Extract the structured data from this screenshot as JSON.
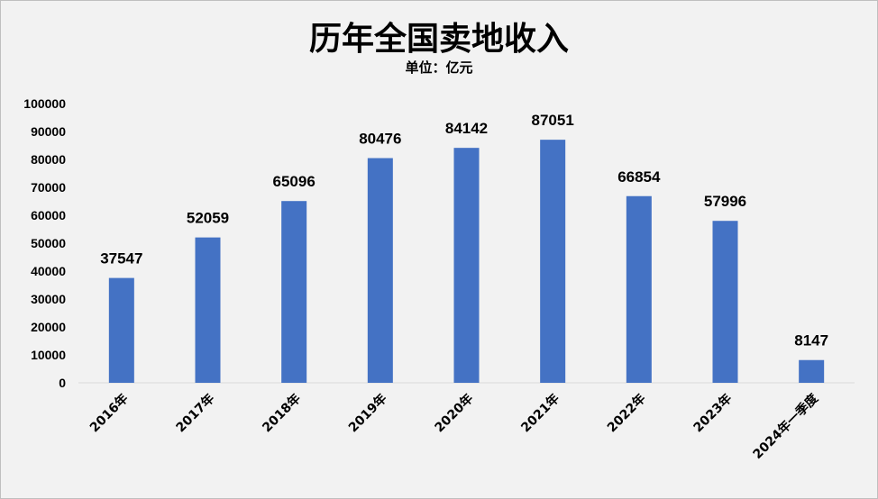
{
  "colors": {
    "bar": "#4472c4",
    "background": "#f2f2f2",
    "axis": "#d9d9d9"
  },
  "chart_data": {
    "type": "bar",
    "title": "历年全国卖地收入",
    "subtitle": "单位：亿元",
    "categories": [
      "2016年",
      "2017年",
      "2018年",
      "2019年",
      "2020年",
      "2021年",
      "2022年",
      "2023年",
      "2024年一季度"
    ],
    "values": [
      37547,
      52059,
      65096,
      80476,
      84142,
      87051,
      66854,
      57996,
      8147
    ],
    "ylim": [
      0,
      100000
    ],
    "yticks": [
      "0",
      "10000",
      "20000",
      "30000",
      "40000",
      "50000",
      "60000",
      "70000",
      "80000",
      "90000",
      "100000"
    ],
    "grid": false,
    "legend": "none"
  }
}
